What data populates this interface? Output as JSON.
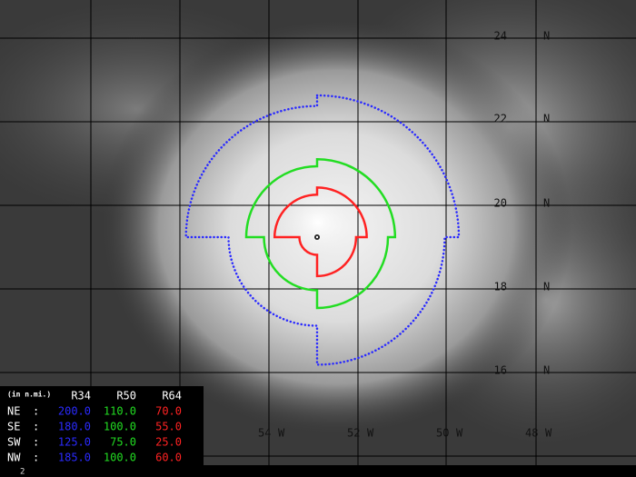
{
  "lat_labels": [
    [
      "24",
      "N"
    ],
    [
      "22",
      "N"
    ],
    [
      "20",
      "N"
    ],
    [
      "18",
      "N"
    ],
    [
      "16",
      "N"
    ]
  ],
  "lon_labels": [
    [
      "54",
      "W"
    ],
    [
      "52",
      "W"
    ],
    [
      "50",
      "W"
    ],
    [
      "48",
      "W"
    ]
  ],
  "table": {
    "unit_note": "(in n.mi.)",
    "header": [
      "R34",
      "R50",
      "R64"
    ],
    "rows": [
      [
        "NE",
        ":",
        "200.0",
        "110.0",
        "70.0"
      ],
      [
        "SE",
        ":",
        "180.0",
        "100.0",
        "55.0"
      ],
      [
        "SW",
        ":",
        "125.0",
        "75.0",
        "25.0"
      ],
      [
        "NW",
        ":",
        "185.0",
        "100.0",
        "60.0"
      ]
    ]
  },
  "footer": "2"
}
